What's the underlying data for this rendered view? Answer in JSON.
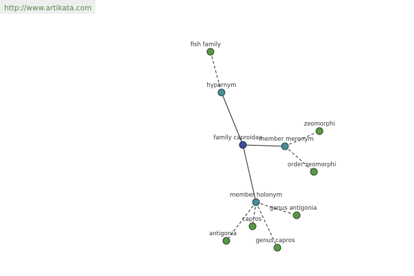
{
  "header": {
    "url": "http://www.artikata.com"
  },
  "nodes": [
    {
      "label": "fish family"
    },
    {
      "label": "hypernym"
    },
    {
      "label": "family caproidae"
    },
    {
      "label": "member meronym"
    },
    {
      "label": "zeomorphi"
    },
    {
      "label": "order zeomorphi"
    },
    {
      "label": "member holonym"
    },
    {
      "label": "genus antigonia"
    },
    {
      "label": "capros"
    },
    {
      "label": "antigonia"
    },
    {
      "label": "genus capros"
    }
  ]
}
